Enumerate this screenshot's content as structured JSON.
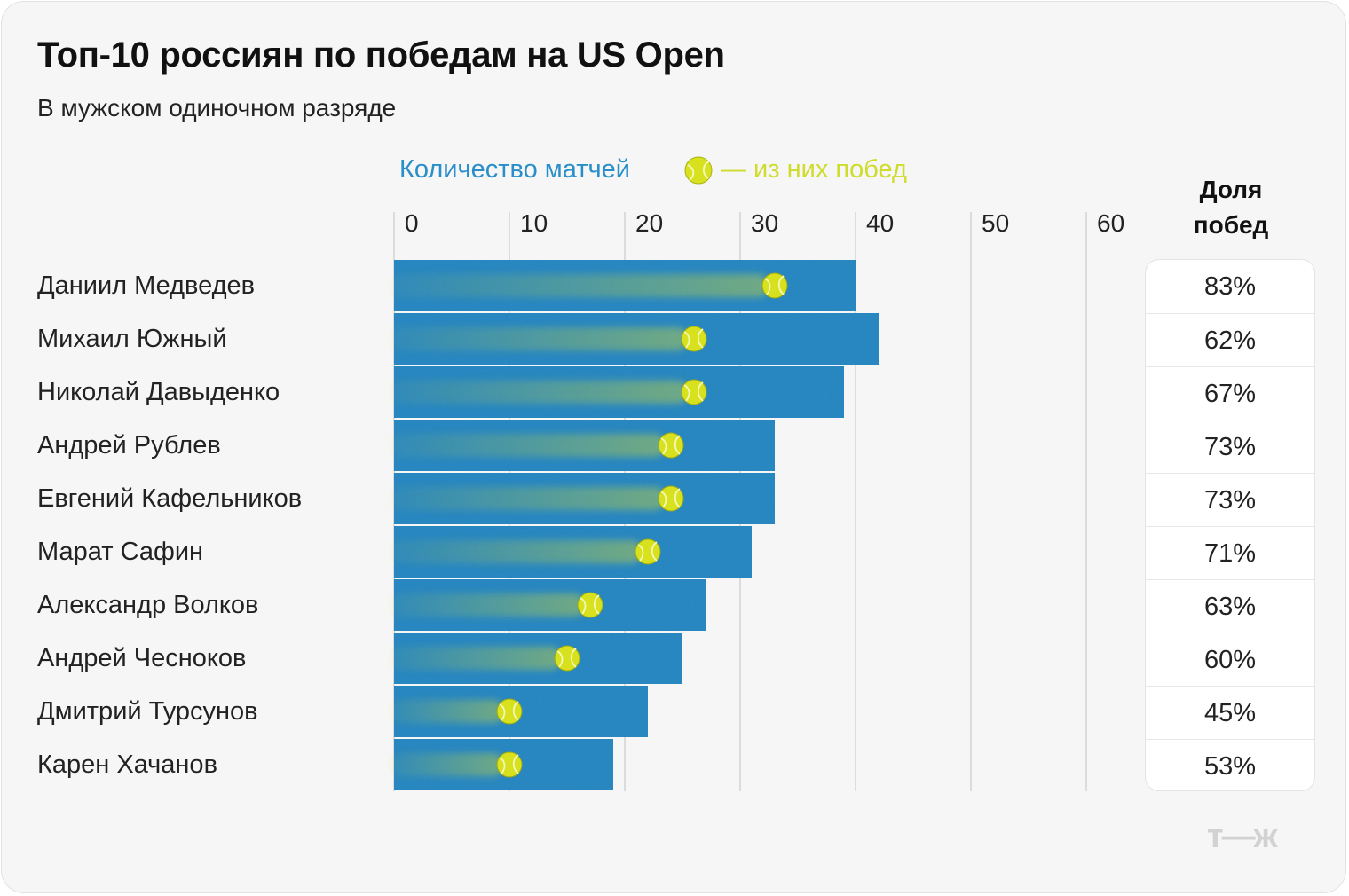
{
  "header": {
    "title": "Топ-10 россиян по победам на US Open",
    "subtitle": "В мужском одиночном разряде"
  },
  "legend": {
    "matches_label": "Количество матчей",
    "wins_label": "— из них побед"
  },
  "share_header": {
    "line1": "Доля",
    "line2": "побед"
  },
  "logo": "т—ж",
  "colors": {
    "bar": "#2383bf",
    "bar_dark": "#1a6ea6",
    "ball": "#d7e11e",
    "matches_label": "#2a8fc9",
    "wins_label": "#cfdc2b",
    "grid": "#d4d4d4"
  },
  "chart_data": {
    "type": "bar",
    "orientation": "horizontal",
    "title": "Топ-10 россиян по победам на US Open",
    "subtitle": "В мужском одиночном разряде",
    "xlim": [
      0,
      60
    ],
    "xticks": [
      "0",
      "10",
      "20",
      "30",
      "40",
      "50",
      "60"
    ],
    "grid": true,
    "categories": [
      "Даниил Медведев",
      "Михаил Южный",
      "Николай Давыденко",
      "Андрей Рублев",
      "Евгений Кафельников",
      "Марат Сафин",
      "Александр Волков",
      "Андрей Чесноков",
      "Дмитрий Турсунов",
      "Карен Хачанов"
    ],
    "series": [
      {
        "name": "Количество матчей",
        "values": [
          40,
          42,
          39,
          33,
          33,
          31,
          27,
          25,
          22,
          19
        ]
      },
      {
        "name": "— из них побед",
        "values": [
          33,
          26,
          26,
          24,
          24,
          22,
          17,
          15,
          10,
          10
        ]
      }
    ],
    "win_share": [
      "83%",
      "62%",
      "67%",
      "73%",
      "73%",
      "71%",
      "63%",
      "60%",
      "45%",
      "53%"
    ]
  }
}
